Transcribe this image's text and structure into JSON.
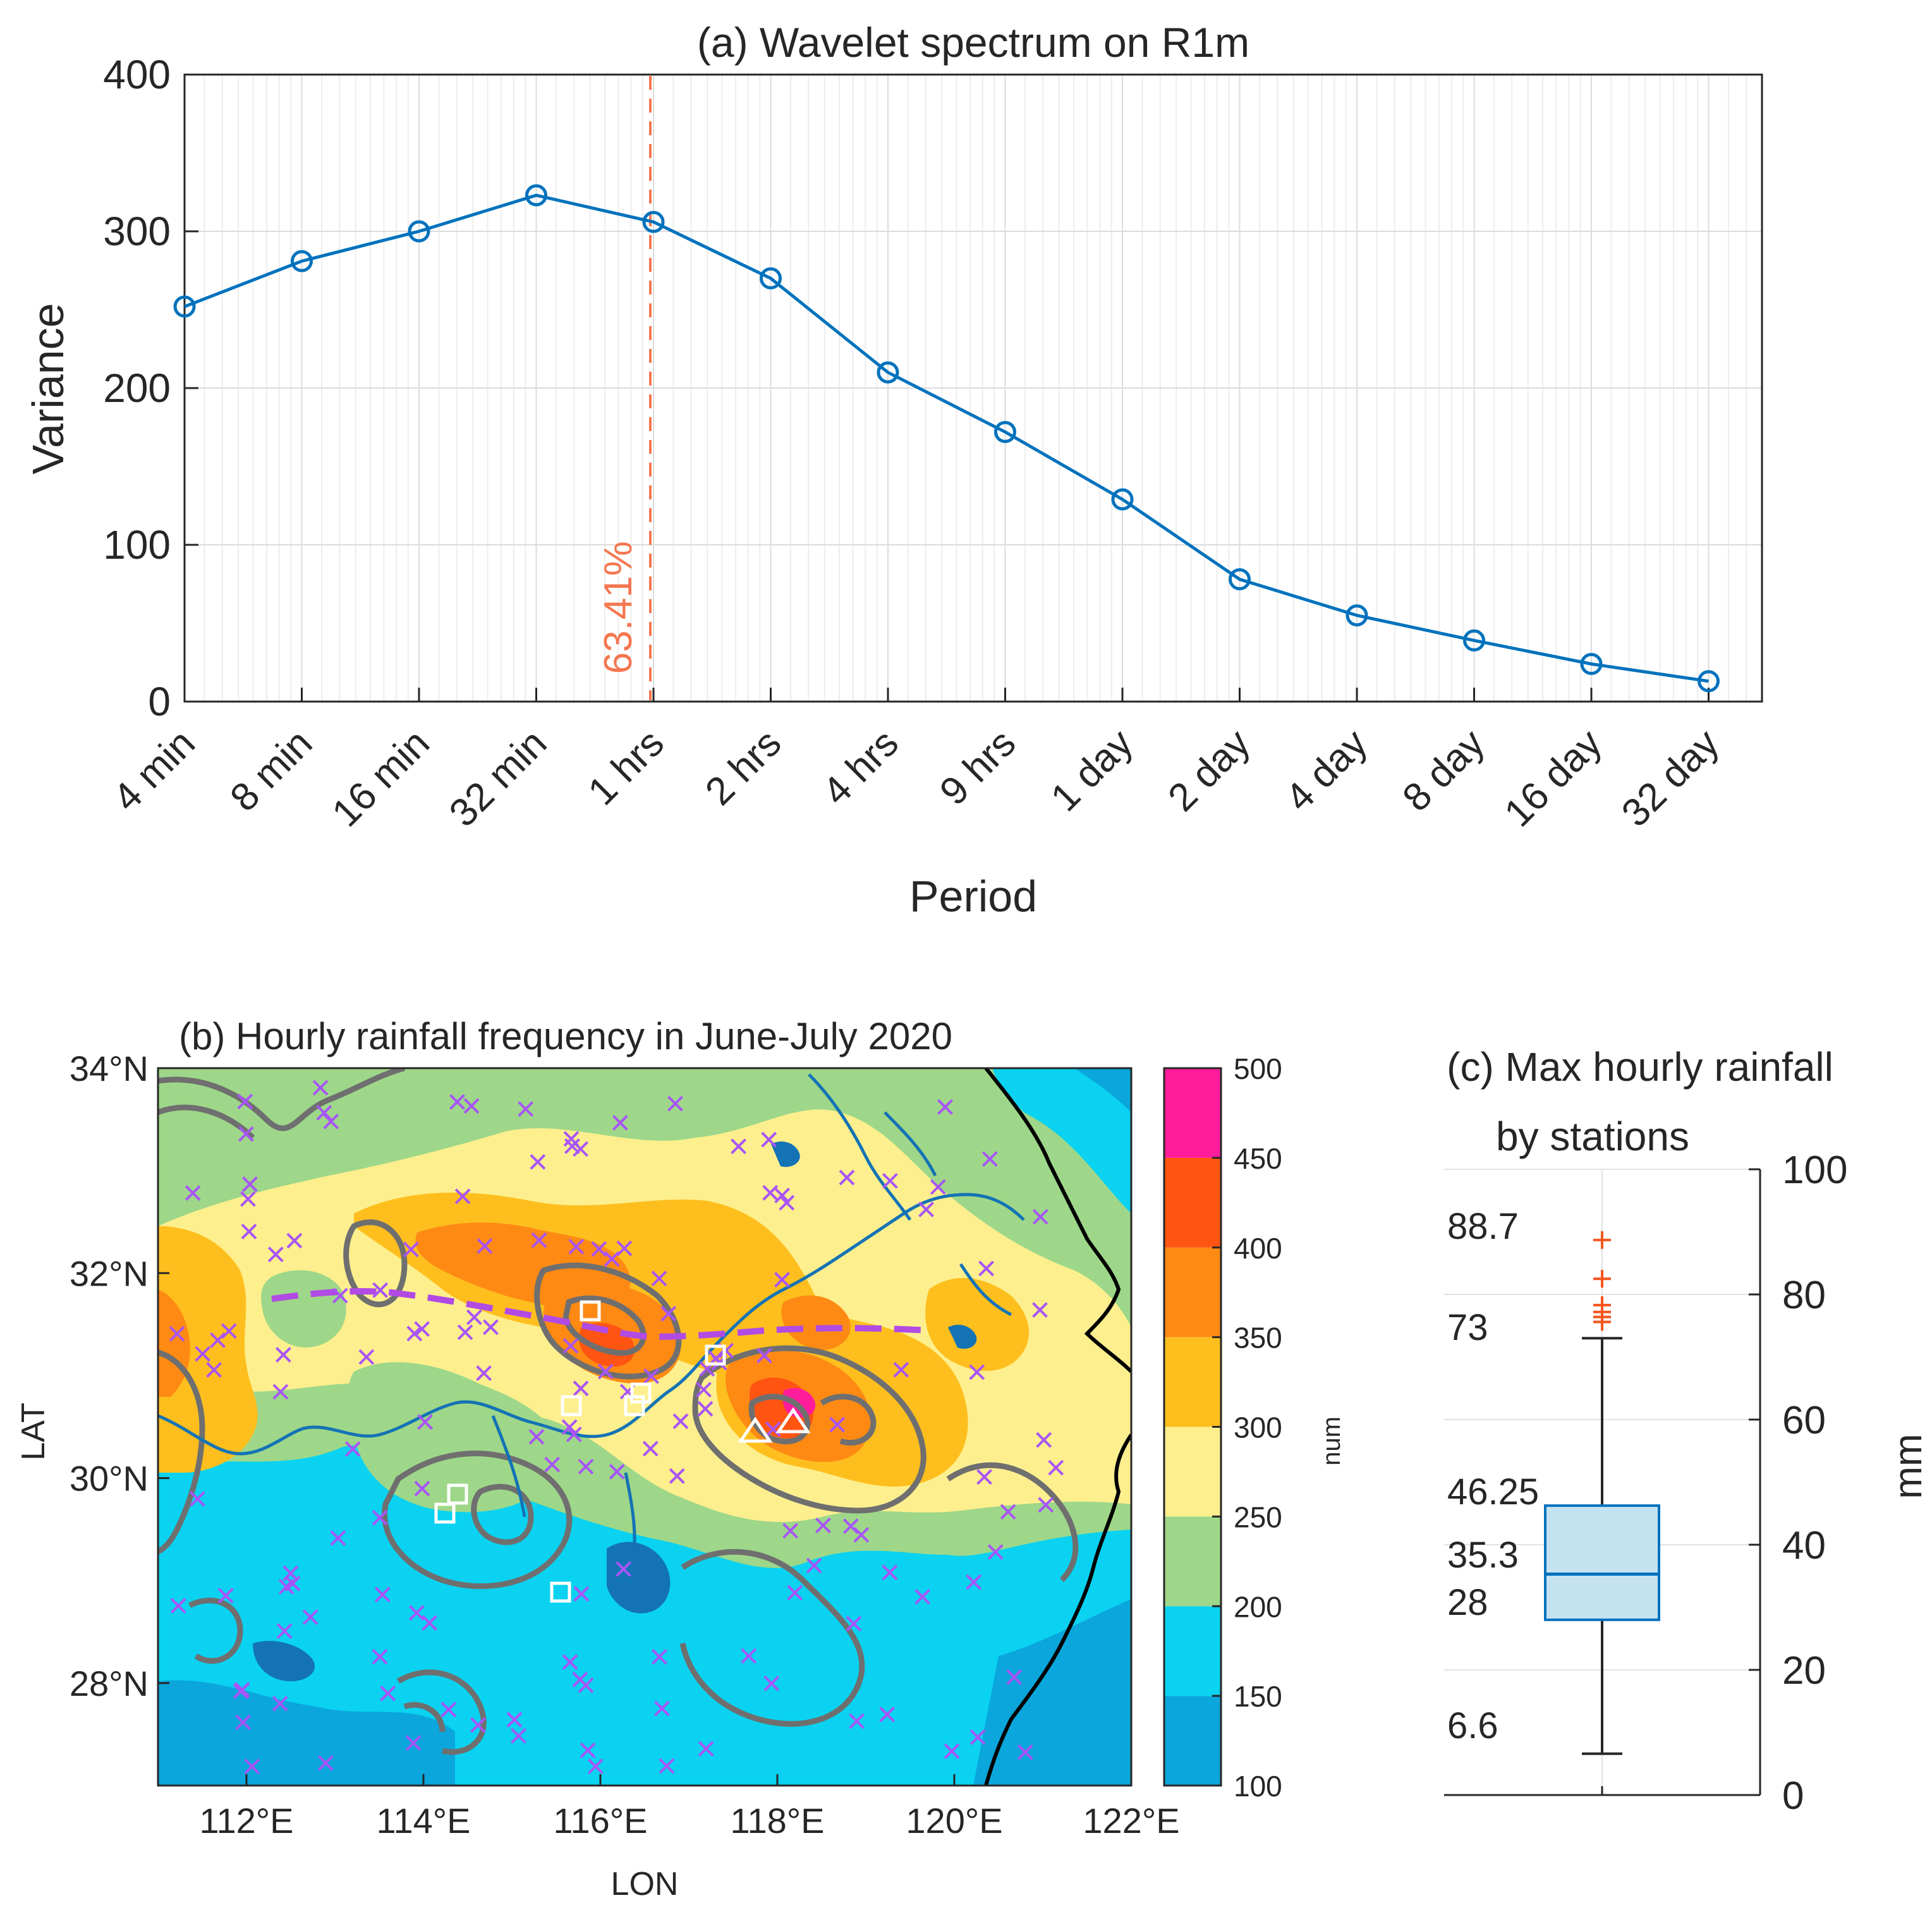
{
  "chart_data": [
    {
      "panel": "a",
      "type": "line",
      "title": "(a) Wavelet spectrum on R1m",
      "xlabel": "Period",
      "ylabel": "Variance",
      "ylim": [
        0,
        400
      ],
      "yticks": [
        "0",
        "100",
        "200",
        "300",
        "400"
      ],
      "xscale": "log2",
      "xticks": [
        "4 min",
        "8 min",
        "16 min",
        "32 min",
        "1 hrs",
        "2 hrs",
        "4 hrs",
        "9 hrs",
        "1 day",
        "2 day",
        "4 day",
        "8 day",
        "16 day",
        "32 day"
      ],
      "x_index": [
        0,
        1,
        2,
        3,
        4,
        5,
        6,
        7,
        8,
        9,
        10,
        11,
        12,
        13
      ],
      "values": [
        252,
        281,
        300,
        323,
        306,
        270,
        210,
        172,
        129,
        78,
        55,
        39,
        24,
        13
      ],
      "series_color": "#0072BD",
      "marker": "circle",
      "reference_line": {
        "label": "63.41%",
        "x_index": 4.0,
        "color": "#F4764F",
        "style": "dashed"
      },
      "grid": true
    },
    {
      "panel": "b",
      "type": "heatmap",
      "title": "(b) Hourly rainfall frequency in June-July 2020",
      "xlabel": "LON",
      "ylabel": "LAT",
      "xlim": [
        111,
        122
      ],
      "ylim": [
        27,
        34
      ],
      "xticks": [
        "112°E",
        "114°E",
        "116°E",
        "118°E",
        "120°E",
        "122°E"
      ],
      "yticks": [
        "28°N",
        "30°N",
        "32°N",
        "34°N"
      ],
      "colorbar": {
        "label": "num",
        "ticks": [
          "100",
          "150",
          "200",
          "250",
          "300",
          "350",
          "400",
          "450",
          "500"
        ],
        "colors": [
          "#0AA6DC",
          "#0AD2F0",
          "#9ED789",
          "#FEEF8E",
          "#FEBF1E",
          "#FE8A14",
          "#FF5412",
          "#FF1D9B"
        ]
      },
      "station_marker_color": "#A855F7",
      "front_line_color": "#B14BE3",
      "river_color": "#1473B5",
      "contour_color": "#6F6F6F"
    },
    {
      "panel": "c",
      "type": "box",
      "title_line1": "(c) Max hourly rainfall",
      "title_line2": "by stations",
      "ylabel": "mm",
      "ylim": [
        0,
        100
      ],
      "yticks": [
        "0",
        "20",
        "40",
        "60",
        "80",
        "100"
      ],
      "min": 6.6,
      "q1": 28,
      "median": 35.3,
      "q3": 46.25,
      "max": 73,
      "outliers": [
        88.7,
        82.5,
        78.3,
        77.2,
        76.4,
        75.6
      ],
      "labels": [
        "88.7",
        "73",
        "46.25",
        "35.3",
        "28",
        "6.6"
      ],
      "box_color": "#0072BD",
      "box_fill": "#C5E2F1",
      "outlier_color": "#F4551E"
    }
  ]
}
